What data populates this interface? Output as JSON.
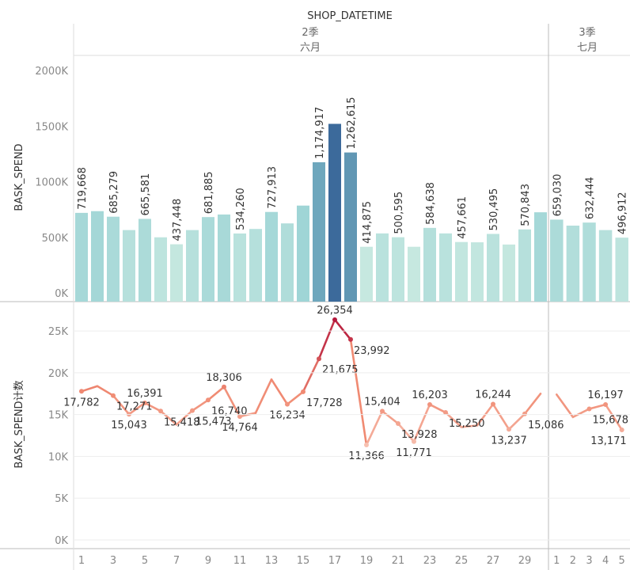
{
  "chart_data": {
    "type": "bar",
    "title": "SHOP_DATETIME",
    "panels": [
      {
        "quarter": "2季",
        "month": "六月",
        "days": 30
      },
      {
        "quarter": "3季",
        "month": "七月",
        "days": 5
      }
    ],
    "x_tick_labels": {
      "june": [
        "1",
        "3",
        "5",
        "7",
        "9",
        "11",
        "13",
        "15",
        "17",
        "19",
        "21",
        "23",
        "25",
        "27",
        "29"
      ],
      "july": [
        "1",
        "2",
        "3",
        "4",
        "5"
      ]
    },
    "bar_chart": {
      "ylabel": "BASK_SPEND",
      "ylim": [
        0,
        2000000
      ],
      "yticks": [
        "0K",
        "500K",
        "1000K",
        "1500K",
        "2000K"
      ],
      "series": [
        {
          "name": "june",
          "values": [
            719668,
            735000,
            685279,
            565000,
            665581,
            500000,
            437448,
            565000,
            681885,
            705000,
            534260,
            575000,
            727913,
            625000,
            785000,
            1174917,
            1520000,
            1262615,
            414875,
            535000,
            500595,
            415000,
            584638,
            535000,
            457661,
            455000,
            530495,
            435000,
            570843,
            725000
          ]
        },
        {
          "name": "july",
          "values": [
            659030,
            605000,
            632444,
            565000,
            496912
          ]
        }
      ],
      "labels": {
        "june": [
          "719,668",
          "",
          "685,279",
          "",
          "665,581",
          "",
          "437,448",
          "",
          "681,885",
          "",
          "534,260",
          "",
          "727,913",
          "",
          "",
          "1,174,917",
          "",
          "1,262,615",
          "414,875",
          "",
          "500,595",
          "",
          "584,638",
          "",
          "457,661",
          "",
          "530,495",
          "",
          "570,843",
          ""
        ],
        "july": [
          "659,030",
          "",
          "632,444",
          "",
          "496,912"
        ]
      },
      "color_range": [
        "#c6e8e0",
        "#8ccbd1",
        "#3c6a9b"
      ]
    },
    "line_chart": {
      "ylabel": "BASK_SPEND计数",
      "ylim": [
        0,
        27000
      ],
      "yticks": [
        "0K",
        "5K",
        "10K",
        "15K",
        "20K",
        "25K"
      ],
      "series": [
        {
          "name": "june",
          "values": [
            17782,
            18400,
            17271,
            15043,
            16391,
            15418,
            13800,
            15473,
            16740,
            18306,
            14764,
            15200,
            19200,
            16234,
            17728,
            21675,
            26354,
            23992,
            11366,
            15404,
            13928,
            11771,
            16203,
            15250,
            13500,
            13700,
            16244,
            13237,
            15086,
            17500
          ]
        },
        {
          "name": "july",
          "values": [
            17400,
            14700,
            15678,
            16197,
            13171
          ]
        }
      ],
      "labels": {
        "june": [
          "17,782",
          "",
          "17,271",
          "15,043",
          "16,391",
          "15,418",
          "",
          "15,473",
          "16,740",
          "18,306",
          "14,764",
          "",
          "",
          "16,234",
          "17,728",
          "21,675",
          "26,354",
          "23,992",
          "11,366",
          "15,404",
          "13,928",
          "11,771",
          "16,203",
          "15,250",
          "",
          "",
          "16,244",
          "13,237",
          "15,086",
          ""
        ],
        "july": [
          "",
          "",
          "15,678",
          "16,197",
          "13,171"
        ]
      },
      "color_range": [
        "#f7c0b0",
        "#f08a72",
        "#b5173b"
      ]
    }
  }
}
